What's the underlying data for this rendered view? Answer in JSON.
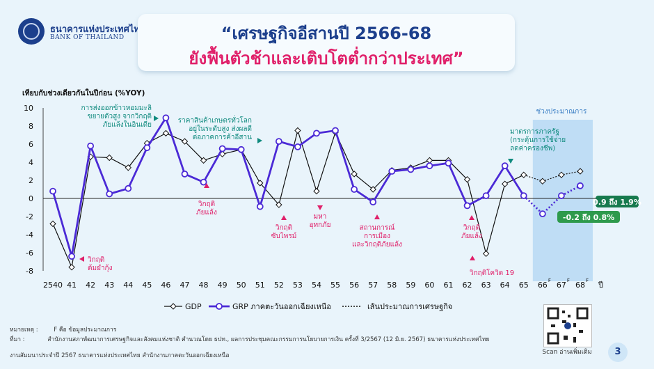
{
  "header": {
    "bank_name_th": "ธนาคารแห่งประเทศไทย",
    "bank_name_en": "BANK OF THAILAND",
    "title_line1": "“เศรษฐกิจอีสานปี 2566-68",
    "title_line2": "ยังฟื้นตัวช้าและเติบโตต่ำกว่าประเทศ”"
  },
  "chart_data": {
    "type": "line",
    "ylabel": "เทียบกับช่วงเดียวกันในปีก่อน (%YOY)",
    "ylim": [
      -8,
      10
    ],
    "yticks": [
      "10",
      "8",
      "6",
      "4",
      "2",
      "0",
      "-2",
      "-4",
      "-6",
      "-8"
    ],
    "x": [
      "2540",
      "41",
      "42",
      "43",
      "44",
      "45",
      "46",
      "47",
      "48",
      "49",
      "50",
      "51",
      "52",
      "53",
      "54",
      "55",
      "56",
      "57",
      "58",
      "59",
      "60",
      "61",
      "62",
      "63",
      "64",
      "65",
      "66",
      "67",
      "68"
    ],
    "x_superscripts": {
      "66": "F",
      "67": "F",
      "68": "F"
    },
    "x_unit": "ปี",
    "forecast_label": "ช่วงประมาณการ",
    "forecast_from": "65",
    "series": [
      {
        "name": "GDP",
        "color": "#111111",
        "values": [
          -2.8,
          -7.6,
          4.6,
          4.5,
          3.4,
          6.1,
          7.2,
          6.3,
          4.2,
          4.9,
          5.4,
          1.7,
          -0.7,
          7.5,
          0.8,
          7.3,
          2.7,
          1.0,
          3.1,
          3.4,
          4.2,
          4.2,
          2.1,
          -6.1,
          1.6,
          2.6,
          1.9,
          2.6,
          3.0
        ]
      },
      {
        "name": "GRP ภาคตะวันออกเฉียงเหนือ",
        "color": "#4b2ad6",
        "values": [
          0.8,
          -6.4,
          5.8,
          0.5,
          1.1,
          5.6,
          8.9,
          2.7,
          1.8,
          5.5,
          5.4,
          -0.9,
          6.3,
          5.7,
          7.2,
          7.5,
          1.0,
          -0.4,
          3.0,
          3.2,
          3.6,
          3.9,
          -0.8,
          0.3,
          3.6,
          0.3,
          -1.7,
          0.3,
          1.4
        ]
      }
    ],
    "legend": [
      "GDP",
      "GRP ภาคตะวันออกเฉียงเหนือ",
      "เส้นประมาณการเศรษฐกิจ"
    ],
    "forecast_callouts": [
      "0.9 ถึง 1.9%",
      "-0.2 ถึง 0.8%"
    ],
    "annotations": [
      {
        "lines": [
          "วิกฤติ",
          "ต้มยำกุ้ง"
        ],
        "color": "#e0206a"
      },
      {
        "lines": [
          "การส่งออกข้าวหอมมะลิ",
          "ขยายตัวสูง จากวิกฤติ",
          "ภัยแล้งในอินเดีย"
        ],
        "color": "#0f8a7e"
      },
      {
        "lines": [
          "วิกฤติ",
          "ภัยแล้ง"
        ],
        "color": "#e0206a"
      },
      {
        "lines": [
          "ราคาสินค้าเกษตรทั่วโลก",
          "อยู่ในระดับสูง ส่งผลดี",
          "ต่อภาคการค้าอีสาน"
        ],
        "color": "#0f8a7e"
      },
      {
        "lines": [
          "วิกฤติ",
          "ซับไพรม์"
        ],
        "color": "#e0206a"
      },
      {
        "lines": [
          "มหา",
          "อุทกภัย"
        ],
        "color": "#e0206a"
      },
      {
        "lines": [
          "สถานการณ์",
          "การเมือง",
          "และวิกฤติภัยแล้ง"
        ],
        "color": "#e0206a"
      },
      {
        "lines": [
          "วิกฤติ",
          "ภัยแล้ง"
        ],
        "color": "#e0206a"
      },
      {
        "lines": [
          "วิกฤติโควิด 19"
        ],
        "color": "#e0206a"
      },
      {
        "lines": [
          "มาตรการภาครัฐ",
          "(กระตุ้นการใช้จ่าย",
          "ลดค่าครองชีพ)"
        ],
        "color": "#0f8a7e"
      }
    ]
  },
  "footer": {
    "note_label": "หมายเหตุ :",
    "note_text": "F คือ ข้อมูลประมาณการ",
    "source_label": "ที่มา :",
    "source_text": "สำนักงานสภาพัฒนาการเศรษฐกิจและสังคมแห่งชาติ คำนวณโดย ธปท., ผลการประชุมคณะกรรมการนโยบายการเงิน ครั้งที่ 3/2567  (12 มิ.ย. 2567) ธนาคารแห่งประเทศไทย",
    "org": "งานสัมมนาประจำปี 2567 ธนาคารแห่งประเทศไทย สำนักงานภาคตะวันออกเฉียงเหนือ",
    "qr_caption": "Scan อ่านเพิ่มเติม",
    "page_number": "3"
  }
}
